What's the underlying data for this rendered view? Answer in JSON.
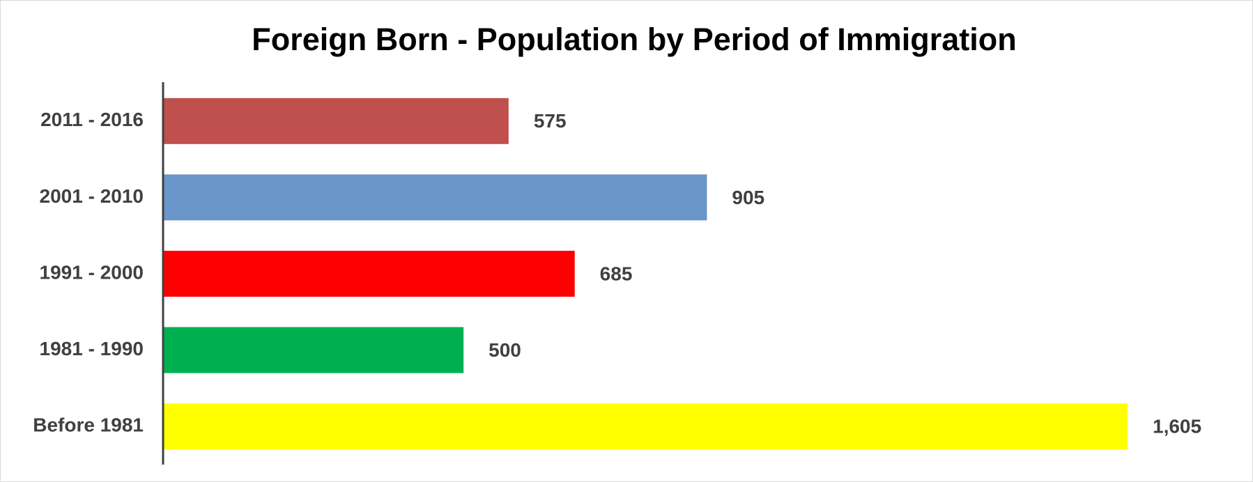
{
  "chart_data": {
    "type": "bar",
    "orientation": "horizontal",
    "title": "Foreign Born - Population by Period of Immigration",
    "categories": [
      "2011 - 2016",
      "2001 - 2010",
      "1991 - 2000",
      "1981 - 1990",
      "Before 1981"
    ],
    "values": [
      575,
      905,
      685,
      500,
      1605
    ],
    "value_labels": [
      "575",
      "905",
      "685",
      "500",
      "1,605"
    ],
    "colors": [
      "#c0504d",
      "#6a96c9",
      "#ff0000",
      "#00b050",
      "#ffff00"
    ]
  }
}
